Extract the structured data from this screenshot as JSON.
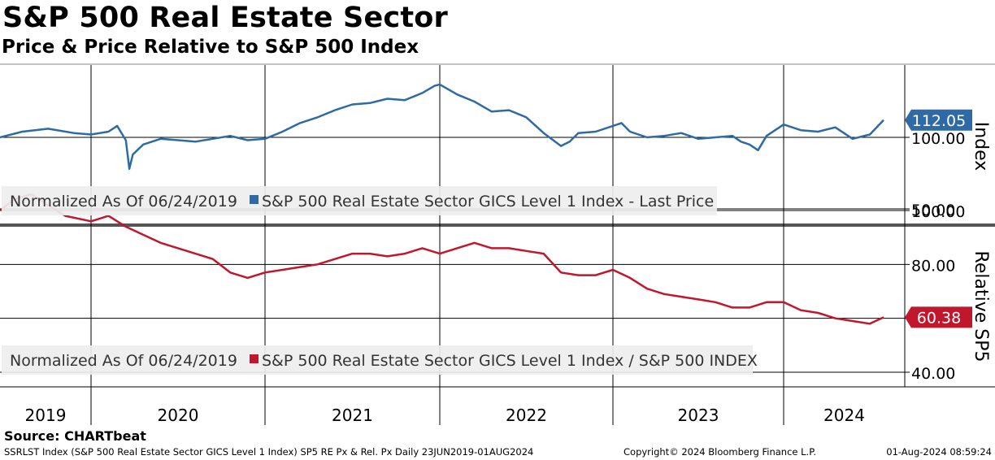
{
  "title": "S&P 500 Real Estate Sector",
  "subtitle": "Price & Price Relative to S&P 500 Index",
  "source": "Source: CHARTbeat",
  "footer": {
    "left": "SSRLST Index (S&P 500 Real Estate Sector GICS Level 1 Index) SP5 RE Px & Rel. Px  Daily 23JUN2019-01AUG2024",
    "middle": "Copyright© 2024 Bloomberg Finance L.P.",
    "right": "01-Aug-2024 08:59:24"
  },
  "colors": {
    "price": "#2e6aa6",
    "relative": "#c0172d",
    "price_tag": "#2e6aa6",
    "relative_tag": "#c0172d",
    "legend_bg": "#eeeeee"
  },
  "chart_data": [
    {
      "type": "line",
      "panel": "top",
      "ylabel": "Index",
      "yticks": [
        "50.00",
        "100.00"
      ],
      "y_ticks_values": [
        50,
        100
      ],
      "ylim": [
        45,
        150
      ],
      "legend": {
        "prefix": "Normalized As Of 06/24/2019",
        "entry": "S&P 500 Real Estate Sector GICS Level 1 Index - Last Price",
        "placement": "bottom-left"
      },
      "last_value_label": "112.05",
      "last_value": 112.05,
      "grid": true,
      "series": [
        {
          "name": "S&P 500 Real Estate Sector GICS Level 1 Index - Last Price",
          "x": [
            2019.47,
            2019.6,
            2019.75,
            2019.9,
            2020.0,
            2020.1,
            2020.15,
            2020.2,
            2020.22,
            2020.24,
            2020.3,
            2020.4,
            2020.5,
            2020.6,
            2020.7,
            2020.8,
            2020.9,
            2021.0,
            2021.1,
            2021.2,
            2021.3,
            2021.4,
            2021.5,
            2021.6,
            2021.7,
            2021.8,
            2021.9,
            2021.97,
            2022.0,
            2022.1,
            2022.2,
            2022.3,
            2022.4,
            2022.5,
            2022.6,
            2022.7,
            2022.75,
            2022.8,
            2022.9,
            2023.0,
            2023.05,
            2023.1,
            2023.2,
            2023.3,
            2023.4,
            2023.5,
            2023.6,
            2023.7,
            2023.75,
            2023.8,
            2023.85,
            2023.9,
            2024.0,
            2024.1,
            2024.2,
            2024.3,
            2024.4,
            2024.5,
            2024.58
          ],
          "values": [
            100,
            104,
            106,
            103,
            102,
            104,
            108,
            98,
            78,
            88,
            95,
            99,
            98,
            97,
            99,
            101,
            98,
            99,
            104,
            110,
            114,
            119,
            123,
            124,
            127,
            126,
            131,
            136,
            137,
            130,
            125,
            118,
            119,
            114,
            103,
            94,
            97,
            103,
            104,
            108,
            110,
            104,
            100,
            101,
            103,
            99,
            100,
            101,
            97,
            95,
            91,
            101,
            109,
            105,
            104,
            107,
            99,
            102,
            112.05
          ]
        }
      ]
    },
    {
      "type": "line",
      "panel": "bottom",
      "ylabel": "Relative SP5",
      "yticks": [
        "40.00",
        "60.00",
        "80.00",
        "100.00"
      ],
      "y_ticks_values": [
        40,
        60,
        80,
        100
      ],
      "ylim": [
        37,
        109
      ],
      "legend": {
        "prefix": "Normalized As Of 06/24/2019",
        "entry": "S&P 500 Real Estate Sector GICS Level 1 Index / S&P 500 INDEX",
        "placement": "bottom-left"
      },
      "last_value_label": "60.38",
      "last_value": 60.38,
      "grid": true,
      "series": [
        {
          "name": "S&P 500 Real Estate Sector GICS Level 1 Index / S&P 500 INDEX",
          "x": [
            2019.47,
            2019.55,
            2019.65,
            2019.75,
            2019.85,
            2020.0,
            2020.1,
            2020.2,
            2020.3,
            2020.4,
            2020.5,
            2020.6,
            2020.7,
            2020.8,
            2020.9,
            2021.0,
            2021.1,
            2021.2,
            2021.3,
            2021.4,
            2021.5,
            2021.6,
            2021.7,
            2021.8,
            2021.9,
            2022.0,
            2022.1,
            2022.2,
            2022.3,
            2022.4,
            2022.5,
            2022.6,
            2022.7,
            2022.8,
            2022.9,
            2023.0,
            2023.1,
            2023.2,
            2023.3,
            2023.4,
            2023.5,
            2023.6,
            2023.7,
            2023.8,
            2023.9,
            2024.0,
            2024.1,
            2024.2,
            2024.3,
            2024.4,
            2024.5,
            2024.58
          ],
          "values": [
            100,
            104,
            106,
            102,
            98,
            96,
            98,
            94,
            91,
            88,
            86,
            84,
            82,
            77,
            75,
            77,
            78,
            79,
            80,
            82,
            84,
            84,
            83,
            84,
            86,
            84,
            86,
            88,
            86,
            86,
            85,
            84,
            77,
            76,
            76,
            78,
            75,
            71,
            69,
            68,
            67,
            66,
            64,
            64,
            66,
            66,
            63,
            62,
            60,
            59,
            58,
            60.38
          ]
        }
      ]
    }
  ],
  "x_axis": {
    "labels": [
      "2019",
      "2020",
      "2021",
      "2022",
      "2023",
      "2024"
    ],
    "boundaries": [
      2020.0,
      2021.0,
      2022.0,
      2023.0,
      2024.0
    ]
  }
}
